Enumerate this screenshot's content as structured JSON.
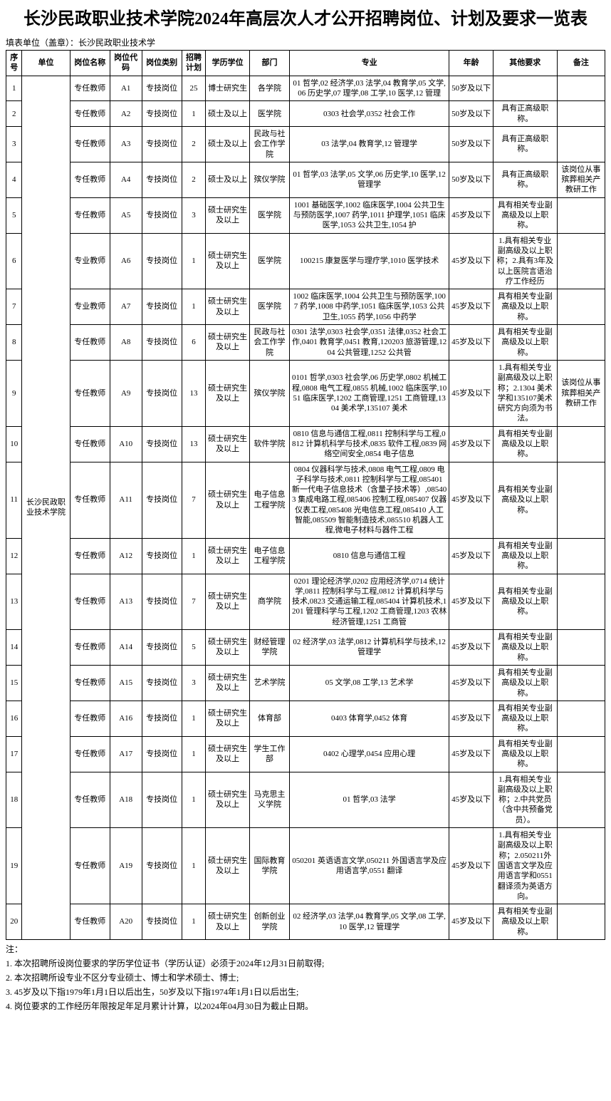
{
  "title": "长沙民政职业技术学院2024年高层次人才公开招聘岗位、计划及要求一览表",
  "subheader": "填表单位（盖章）：长沙民政职业技术学",
  "columns": [
    "序号",
    "单位",
    "岗位名称",
    "岗位代码",
    "岗位类别",
    "招聘计划",
    "学历学位",
    "部门",
    "专业",
    "年龄",
    "其他要求",
    "备注"
  ],
  "unit": "长沙民政职业技术学院",
  "rows": [
    {
      "seq": "1",
      "pname": "专任教师",
      "pcode": "A1",
      "ptype": "专技岗位",
      "plan": "25",
      "edu": "博士研究生",
      "dept": "各学院",
      "major": "01 哲学,02 经济学,03 法学,04 教育学,05 文学,06 历史学,07 理学,08 工学,10 医学,12 管理",
      "age": "50岁及以下",
      "other": "",
      "note": ""
    },
    {
      "seq": "2",
      "pname": "专任教师",
      "pcode": "A2",
      "ptype": "专技岗位",
      "plan": "1",
      "edu": "硕士及以上",
      "dept": "医学院",
      "major": "0303 社会学,0352 社会工作",
      "age": "50岁及以下",
      "other": "具有正高级职称。",
      "note": ""
    },
    {
      "seq": "3",
      "pname": "专任教师",
      "pcode": "A3",
      "ptype": "专技岗位",
      "plan": "2",
      "edu": "硕士及以上",
      "dept": "民政与社会工作学院",
      "major": "03 法学,04 教育学,12 管理学",
      "age": "50岁及以下",
      "other": "具有正高级职称。",
      "note": ""
    },
    {
      "seq": "4",
      "pname": "专任教师",
      "pcode": "A4",
      "ptype": "专技岗位",
      "plan": "2",
      "edu": "硕士及以上",
      "dept": "殡仪学院",
      "major": "01 哲学,03 法学,05 文学,06 历史学,10 医学,12 管理学",
      "age": "50岁及以下",
      "other": "具有正高级职称。",
      "note": "该岗位从事殡葬相关产教研工作"
    },
    {
      "seq": "5",
      "pname": "专任教师",
      "pcode": "A5",
      "ptype": "专技岗位",
      "plan": "3",
      "edu": "硕士研究生及以上",
      "dept": "医学院",
      "major": "1001 基础医学,1002 临床医学,1004 公共卫生与预防医学,1007 药学,1011 护理学,1051 临床医学,1053 公共卫生,1054 护",
      "age": "45岁及以下",
      "other": "具有相关专业副高级及以上职称。",
      "note": ""
    },
    {
      "seq": "6",
      "pname": "专业教师",
      "pcode": "A6",
      "ptype": "专技岗位",
      "plan": "1",
      "edu": "硕士研究生及以上",
      "dept": "医学院",
      "major": "100215 康复医学与理疗学,1010 医学技术",
      "age": "45岁及以下",
      "other": "1.具有相关专业副高级及以上职称；2.具有3年及以上医院言语治疗工作经历",
      "note": ""
    },
    {
      "seq": "7",
      "pname": "专业教师",
      "pcode": "A7",
      "ptype": "专技岗位",
      "plan": "1",
      "edu": "硕士研究生及以上",
      "dept": "医学院",
      "major": "1002 临床医学,1004 公共卫生与预防医学,1007 药学,1008 中药学,1051 临床医学,1053 公共卫生,1055 药学,1056 中药学",
      "age": "45岁及以下",
      "other": "具有相关专业副高级及以上职称。",
      "note": ""
    },
    {
      "seq": "8",
      "pname": "专任教师",
      "pcode": "A8",
      "ptype": "专技岗位",
      "plan": "6",
      "edu": "硕士研究生及以上",
      "dept": "民政与社会工作学院",
      "major": "0301 法学,0303 社会学,0351 法律,0352 社会工作,0401 教育学,0451 教育,120203 旅游管理,1204 公共管理,1252 公共管",
      "age": "45岁及以下",
      "other": "具有相关专业副高级及以上职称。",
      "note": ""
    },
    {
      "seq": "9",
      "pname": "专任教师",
      "pcode": "A9",
      "ptype": "专技岗位",
      "plan": "13",
      "edu": "硕士研究生及以上",
      "dept": "殡仪学院",
      "major": "0101 哲学,0303 社会学,06 历史学,0802 机械工程,0808 电气工程,0855 机械,1002 临床医学,1051 临床医学,1202 工商管理,1251 工商管理,1304 美术学,135107 美术",
      "age": "45岁及以下",
      "other": "1.具有相关专业副高级及以上职称；2.1304 美术学和135107美术研究方向须为书法。",
      "note": "该岗位从事殡葬相关产教研工作"
    },
    {
      "seq": "10",
      "pname": "专任教师",
      "pcode": "A10",
      "ptype": "专技岗位",
      "plan": "13",
      "edu": "硕士研究生及以上",
      "dept": "软件学院",
      "major": "0810 信息与通信工程,0811 控制科学与工程,0812 计算机科学与技术,0835 软件工程,0839 网络空间安全,0854 电子信息",
      "age": "45岁及以下",
      "other": "具有相关专业副高级及以上职称。",
      "note": ""
    },
    {
      "seq": "11",
      "pname": "专任教师",
      "pcode": "A11",
      "ptype": "专技岗位",
      "plan": "7",
      "edu": "硕士研究生及以上",
      "dept": "电子信息工程学院",
      "major": "0804 仪器科学与技术,0808 电气工程,0809 电子科学与技术,0811 控制科学与工程,085401 新一代电子信息技术（含量子技术等）,085403 集成电路工程,085406 控制工程,085407 仪器仪表工程,085408 光电信息工程,085410 人工智能,085509 智能制造技术,085510 机器人工程,微电子材料与器件工程",
      "age": "45岁及以下",
      "other": "具有相关专业副高级及以上职称。",
      "note": ""
    },
    {
      "seq": "12",
      "pname": "专任教师",
      "pcode": "A12",
      "ptype": "专技岗位",
      "plan": "1",
      "edu": "硕士研究生及以上",
      "dept": "电子信息工程学院",
      "major": "0810 信息与通信工程",
      "age": "45岁及以下",
      "other": "具有相关专业副高级及以上职称。",
      "note": ""
    },
    {
      "seq": "13",
      "pname": "专任教师",
      "pcode": "A13",
      "ptype": "专技岗位",
      "plan": "7",
      "edu": "硕士研究生及以上",
      "dept": "商学院",
      "major": "0201 理论经济学,0202 应用经济学,0714 统计学,0811 控制科学与工程,0812 计算机科学与技术,0823 交通运输工程,085404 计算机技术,1201 管理科学与工程,1202 工商管理,1203 农林经济管理,1251 工商管",
      "age": "45岁及以下",
      "other": "具有相关专业副高级及以上职称。",
      "note": ""
    },
    {
      "seq": "14",
      "pname": "专任教师",
      "pcode": "A14",
      "ptype": "专技岗位",
      "plan": "5",
      "edu": "硕士研究生及以上",
      "dept": "财经管理学院",
      "major": "02 经济学,03 法学,0812 计算机科学与技术,12 管理学",
      "age": "45岁及以下",
      "other": "具有相关专业副高级及以上职称。",
      "note": ""
    },
    {
      "seq": "15",
      "pname": "专任教师",
      "pcode": "A15",
      "ptype": "专技岗位",
      "plan": "3",
      "edu": "硕士研究生及以上",
      "dept": "艺术学院",
      "major": "05 文学,08 工学,13 艺术学",
      "age": "45岁及以下",
      "other": "具有相关专业副高级及以上职称。",
      "note": ""
    },
    {
      "seq": "16",
      "pname": "专任教师",
      "pcode": "A16",
      "ptype": "专技岗位",
      "plan": "1",
      "edu": "硕士研究生及以上",
      "dept": "体育部",
      "major": "0403 体育学,0452 体育",
      "age": "45岁及以下",
      "other": "具有相关专业副高级及以上职称。",
      "note": ""
    },
    {
      "seq": "17",
      "pname": "专任教师",
      "pcode": "A17",
      "ptype": "专技岗位",
      "plan": "1",
      "edu": "硕士研究生及以上",
      "dept": "学生工作部",
      "major": "0402 心理学,0454 应用心理",
      "age": "45岁及以下",
      "other": "具有相关专业副高级及以上职称。",
      "note": ""
    },
    {
      "seq": "18",
      "pname": "专任教师",
      "pcode": "A18",
      "ptype": "专技岗位",
      "plan": "1",
      "edu": "硕士研究生及以上",
      "dept": "马克思主义学院",
      "major": "01 哲学,03 法学",
      "age": "45岁及以下",
      "other": "1.具有相关专业副高级及以上职称；2.中共党员（含中共预备党员）。",
      "note": ""
    },
    {
      "seq": "19",
      "pname": "专任教师",
      "pcode": "A19",
      "ptype": "专技岗位",
      "plan": "1",
      "edu": "硕士研究生及以上",
      "dept": "国际教育学院",
      "major": "050201 英语语言文学,050211 外国语言学及应用语言学,0551 翻译",
      "age": "45岁及以下",
      "other": "1.具有相关专业副高级及以上职称；2.050211外国语言文学及应用语言学和0551翻译须为英语方向。",
      "note": ""
    },
    {
      "seq": "20",
      "pname": "专任教师",
      "pcode": "A20",
      "ptype": "专技岗位",
      "plan": "1",
      "edu": "硕士研究生及以上",
      "dept": "创新创业学院",
      "major": "02 经济学,03 法学,04 教育学,05 文学,08 工学,10 医学,12 管理学",
      "age": "45岁及以下",
      "other": "具有相关专业副高级及以上职称。",
      "note": ""
    }
  ],
  "notes_label": "注：",
  "notes": [
    "1. 本次招聘所设岗位要求的学历学位证书（学历认证）必须于2024年12月31日前取得;",
    "2. 本次招聘所设专业不区分专业硕士、博士和学术硕士、博士;",
    "3. 45岁及以下指1979年1月1日以后出生，50岁及以下指1974年1月1日以后出生;",
    "4. 岗位要求的工作经历年限按足年足月累计计算，以2024年04月30日为截止日期。"
  ]
}
